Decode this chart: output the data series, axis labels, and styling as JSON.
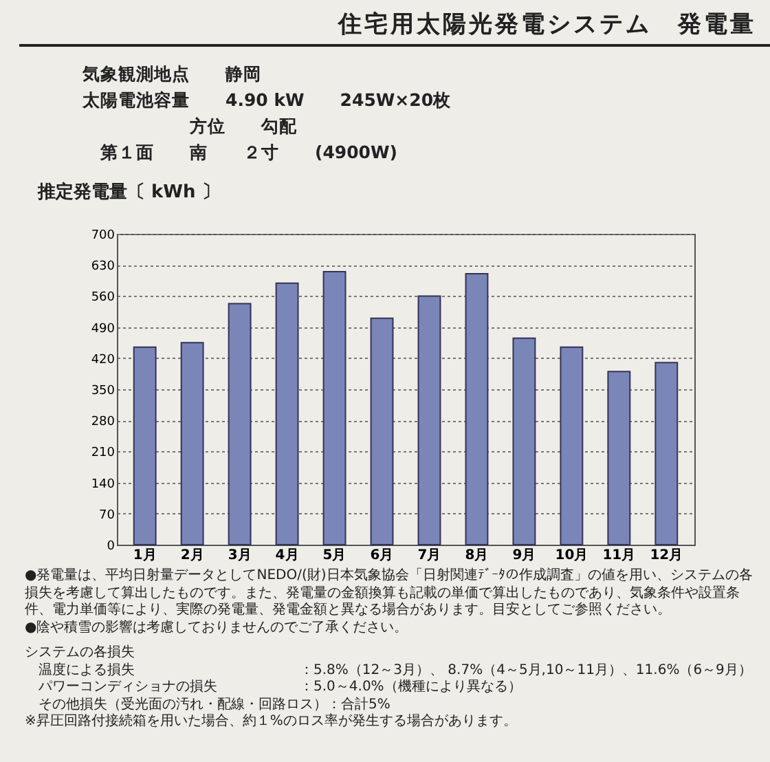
{
  "chart_data": {
    "type": "bar",
    "title": "住宅用太陽光発電システム　発電量",
    "ylabel": "推定発電量〔 kWh 〕",
    "categories": [
      "1月",
      "2月",
      "3月",
      "4月",
      "5月",
      "6月",
      "7月",
      "8月",
      "9月",
      "10月",
      "11月",
      "12月"
    ],
    "values": [
      445,
      455,
      543,
      589,
      615,
      510,
      560,
      610,
      465,
      445,
      390,
      410
    ],
    "color": "#7b86b8",
    "ylim": [
      0,
      700
    ],
    "yticks": [
      0,
      70,
      140,
      210,
      280,
      350,
      420,
      490,
      560,
      630,
      700
    ],
    "grid": "y",
    "annotations": [
      "気象観測地点　　静岡",
      "太陽電池容量　　4.90 kW　　245W×20枚",
      "　　　　　　方位　　勾配",
      "　第１面　　南　　２寸　　(4900W)",
      "●発電量は、平均日射量データとしてNEDO/(財)日本気象協会「日射関連ﾃﾞｰﾀの作成調査」の値を用い、システムの各損失を考慮して算出したものです。また、発電量の金額換算も記載の単価で算出したものであり、気象条件や設置条件、電力単価等により、実際の発電量、発電金額と異なる場合があります。目安としてご参照ください。",
      "●陰や積雪の影響は考慮しておりませんのでご了承ください。",
      "システムの各損失",
      "　温度による損失　　　　　　　　　　　　：5.8%（12～3月）、 8.7%（4～5月,10～11月）、11.6%（6～9月）",
      "　パワーコンディショナの損失　　　　　　：5.0～4.0%（機種により異なる）",
      "　その他損失（受光面の汚れ・配線・回路ロス）：合計5%",
      "※昇圧回路付接続箱を用いた場合、約１%のロス率が発生する場合があります。"
    ]
  }
}
